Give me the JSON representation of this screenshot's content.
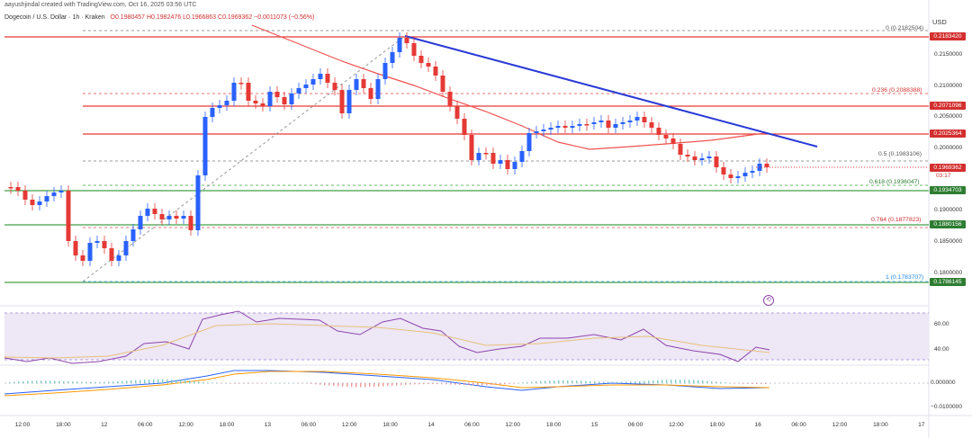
{
  "header": {
    "credit": "aayushjindal created with TradingView.com, Oct 16, 2025 03:56 UTC",
    "symbol": "Dogecoin / U.S. Dollar · 1h · Kraken",
    "ohlc": "O0.1980457  H0.1982476  L0.1966863  C0.1969362  −0.0011073 (−0.56%)"
  },
  "axis": {
    "currency": "USD",
    "price_ticks": [
      "0.2150000",
      "0.2100000",
      "0.2050000",
      "0.2000000",
      "0.1900000",
      "0.1850000",
      "0.1800000"
    ],
    "rsi_ticks": [
      "60.00",
      "40.00"
    ],
    "macd_ticks": [
      "0.000000",
      "−0.0100000"
    ],
    "time_ticks": [
      "12:00",
      "18:00",
      "12",
      "06:00",
      "12:00",
      "18:00",
      "13",
      "06:00",
      "12:00",
      "18:00",
      "14",
      "06:00",
      "12:00",
      "18:00",
      "15",
      "06:00",
      "12:00",
      "18:00",
      "16",
      "06:00",
      "12:00",
      "18:00",
      "17"
    ]
  },
  "price_labels": [
    {
      "text": "0.2183420",
      "color": "#d32f2f"
    },
    {
      "text": "0.2071096",
      "color": "#d32f2f"
    },
    {
      "text": "0.2025364",
      "color": "#d32f2f"
    },
    {
      "text": "0.1969362",
      "color": "#d32f2f"
    },
    {
      "text": "0.1934703",
      "color": "#2e7d32"
    },
    {
      "text": "0.1880156",
      "color": "#2e7d32"
    },
    {
      "text": "0.1786145",
      "color": "#2e7d32"
    }
  ],
  "countdown": "03:17",
  "fib_levels": [
    {
      "text": "0 (0.2182504)",
      "color": "#555555"
    },
    {
      "text": "0.236 (0.2088388)",
      "color": "#d32f2f"
    },
    {
      "text": "0.5 (0.1983106)",
      "color": "#555555"
    },
    {
      "text": "0.618 (0.1936047)",
      "color": "#2e7d32"
    },
    {
      "text": "0.764 (0.1877823)",
      "color": "#d32f2f"
    },
    {
      "text": "1 (0.1783707)",
      "color": "#1e88e5"
    }
  ],
  "colors": {
    "up": "#2962ff",
    "down": "#e53935",
    "ma": "#ef5350",
    "trend": "#2a3bd6",
    "support": "#43a047",
    "resistance": "#e53935"
  }
}
